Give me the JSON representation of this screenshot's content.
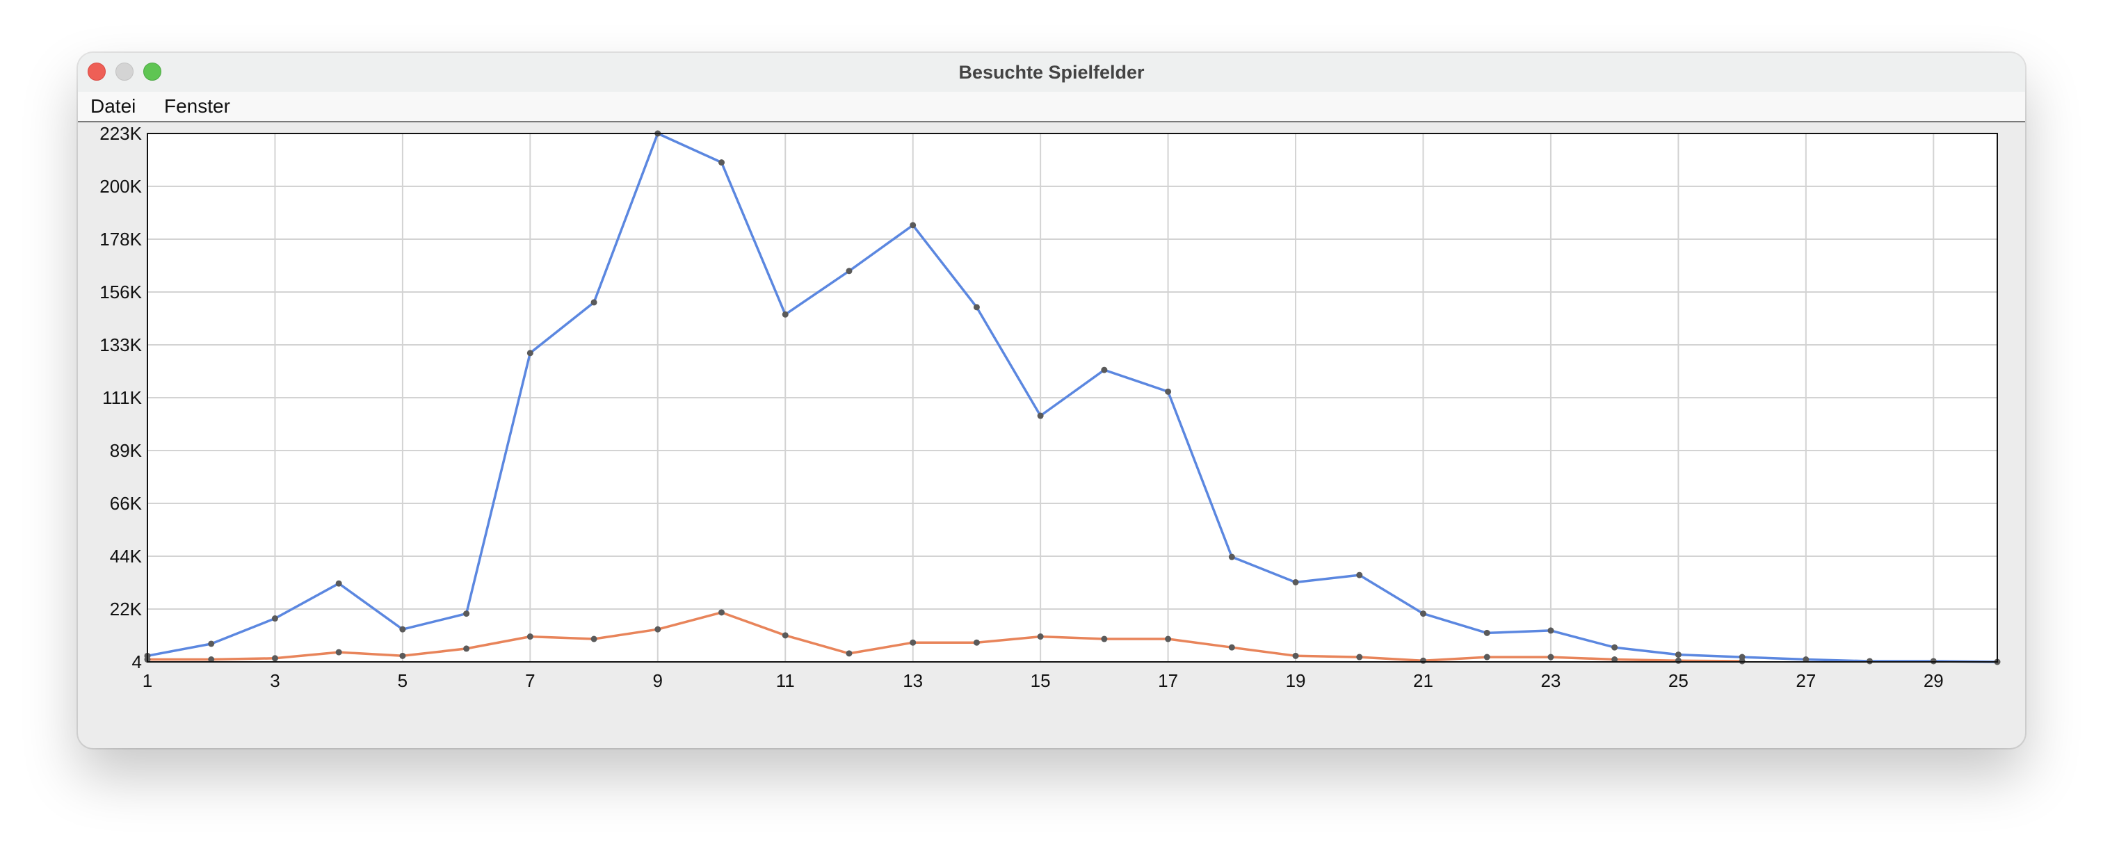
{
  "window": {
    "title": "Besuchte Spielfelder"
  },
  "menu": {
    "items": [
      "Datei",
      "Fenster"
    ]
  },
  "colors": {
    "series_blue": "#5b87e0",
    "series_orange": "#e8845a",
    "grid": "#d3d3d3",
    "point": "#5a5a5a"
  },
  "chart_data": {
    "type": "line",
    "title": "",
    "xlabel": "",
    "ylabel": "",
    "xlim": [
      1,
      30
    ],
    "ylim": [
      4,
      223
    ],
    "x_ticks": [
      "1",
      "3",
      "5",
      "7",
      "9",
      "11",
      "13",
      "15",
      "17",
      "19",
      "21",
      "23",
      "25",
      "27",
      "29"
    ],
    "y_ticks": [
      "4",
      "22K",
      "44K",
      "66K",
      "89K",
      "111K",
      "133K",
      "156K",
      "178K",
      "200K",
      "223K"
    ],
    "grid": true,
    "legend": "none",
    "units": "thousands",
    "x": [
      1,
      2,
      3,
      4,
      5,
      6,
      7,
      8,
      9,
      10,
      11,
      12,
      13,
      14,
      15,
      16,
      17,
      18,
      19,
      20,
      21,
      22,
      23,
      24,
      25,
      26,
      27,
      28,
      29,
      30
    ],
    "series": [
      {
        "color": "#5b87e0",
        "values": [
          6.5,
          11.5,
          22,
          36.5,
          17.5,
          24,
          132,
          153,
          223,
          211,
          148,
          166,
          185,
          151,
          106,
          125,
          116,
          47.5,
          37,
          40,
          24,
          16,
          17,
          10,
          7,
          6,
          5,
          4.3,
          4.3,
          4
        ]
      },
      {
        "color": "#e8845a",
        "values": [
          5,
          5,
          5.5,
          8,
          6.5,
          9.5,
          14.5,
          13.5,
          17.5,
          24.5,
          15,
          7.5,
          12,
          12,
          14.5,
          13.5,
          13.5,
          10,
          6.5,
          6,
          4.5,
          6,
          6,
          5,
          4.5,
          4.3,
          null,
          null,
          null,
          null
        ]
      }
    ]
  }
}
